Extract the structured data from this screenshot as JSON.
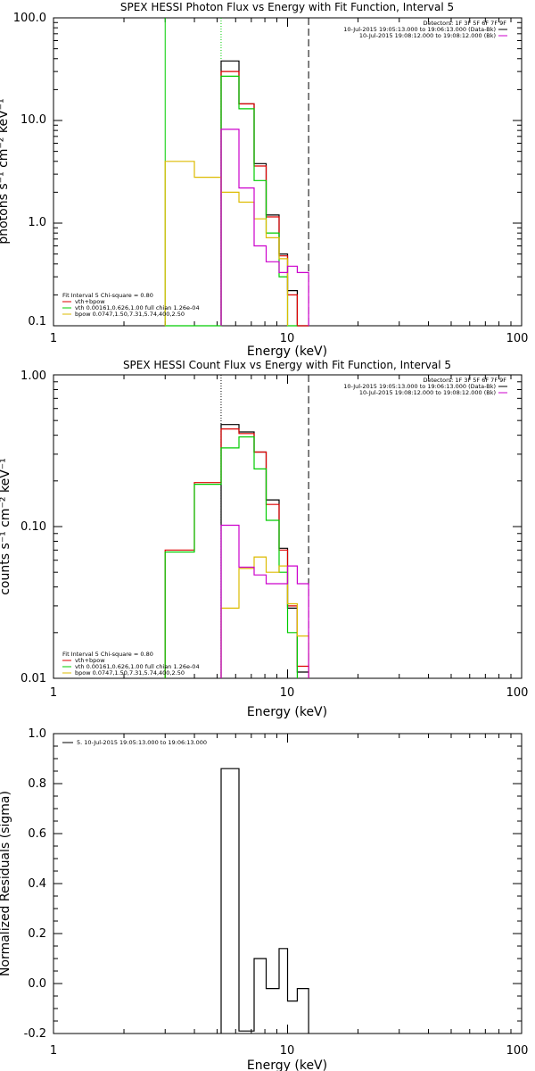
{
  "colors": {
    "total": "#000000",
    "fit": "#dd0000",
    "vth": "#00cc00",
    "bpow": "#ddbb00",
    "bk": "#cc00cc"
  },
  "chart_data": [
    {
      "type": "line",
      "title": "SPEX HESSI Photon Flux vs Energy with Fit Function, Interval 5",
      "xlabel": "Energy (keV)",
      "ylabel": "photons s⁻¹ cm⁻² keV⁻¹",
      "xscale": "log",
      "yscale": "log",
      "xlim": [
        1,
        100
      ],
      "ylim": [
        0.1,
        100
      ],
      "xticks": [
        "1",
        "10",
        "100"
      ],
      "yticks": [
        "0.1",
        "1.0",
        "10.0",
        "100.0"
      ],
      "header": {
        "detectors": "Detectors: 1F 3F 5F 6F 7F 9F",
        "entries": [
          {
            "text": "10-Jul-2015 19:05:13.000 to 19:06:13.000 (Data-Bk)",
            "color": "#000000"
          },
          {
            "text": "10-Jul-2015 19:08:12.000 to 19:08:12.000 (Bk)",
            "color": "#cc00cc"
          }
        ]
      },
      "fit_legend": {
        "heading": "Fit Interval 5   Chi-square = 0.80",
        "entries": [
          {
            "text": "vth+bpow",
            "color": "#dd0000"
          },
          {
            "text": "vth 0.00161,0.626,1.00  full chian 1.26e-04",
            "color": "#00cc00"
          },
          {
            "text": "bpow 0.0747,1.50,7.31,5.74,400,2.50",
            "color": "#ddbb00"
          }
        ]
      },
      "vlines": [
        {
          "x": 3.0,
          "color": "#00cc00",
          "style": "solid"
        },
        {
          "x": 5.2,
          "color": "#00cc00",
          "style": "dotted"
        },
        {
          "x": 12.3,
          "color": "#000000",
          "style": "dashed"
        }
      ],
      "series": [
        {
          "name": "Data-Bk",
          "color": "#000000",
          "edges": [
            5.2,
            6.2,
            7.2,
            8.1,
            9.2,
            10.0,
            11.0,
            12.3
          ],
          "values": [
            38.0,
            14.5,
            3.8,
            1.2,
            0.5,
            0.22,
            0.1
          ]
        },
        {
          "name": "vth+bpow",
          "color": "#dd0000",
          "edges": [
            5.2,
            6.2,
            7.2,
            8.1,
            9.2,
            10.0,
            11.0,
            12.3
          ],
          "values": [
            30.0,
            14.5,
            3.6,
            1.15,
            0.48,
            0.2,
            0.095
          ]
        },
        {
          "name": "vth",
          "color": "#00cc00",
          "edges": [
            3.0,
            5.2,
            6.2,
            7.2,
            8.1,
            9.2,
            10.0,
            11.0
          ],
          "values": [
            0.001,
            27.0,
            13.0,
            2.6,
            0.8,
            0.3,
            0.08
          ]
        },
        {
          "name": "bpow",
          "color": "#ddbb00",
          "edges": [
            3.0,
            4.0,
            5.2,
            6.2,
            7.2,
            8.1,
            9.2,
            10.0
          ],
          "values": [
            4.0,
            2.8,
            2.0,
            1.6,
            1.1,
            0.72,
            0.45
          ]
        },
        {
          "name": "Bk",
          "color": "#cc00cc",
          "edges": [
            5.2,
            6.2,
            7.2,
            8.1,
            9.2,
            10.0,
            11.0,
            12.3
          ],
          "values": [
            8.2,
            2.2,
            0.6,
            0.42,
            0.33,
            0.38,
            0.33
          ]
        }
      ]
    },
    {
      "type": "line",
      "title": "SPEX HESSI Count Flux vs Energy with Fit Function, Interval 5",
      "xlabel": "Energy (keV)",
      "ylabel": "counts s⁻¹ cm⁻² keV⁻¹",
      "xscale": "log",
      "yscale": "log",
      "xlim": [
        1,
        100
      ],
      "ylim": [
        0.01,
        1.0
      ],
      "xticks": [
        "1",
        "10",
        "100"
      ],
      "yticks": [
        "0.01",
        "0.10",
        "1.00"
      ],
      "header": {
        "detectors": "Detectors: 1F 3F 5F 6F 7F 9F",
        "entries": [
          {
            "text": "10-Jul-2015 19:05:13.000 to 19:06:13.000 (Data-Bk)",
            "color": "#000000"
          },
          {
            "text": "10-Jul-2015 19:08:12.000 to 19:08:12.000 (Bk)",
            "color": "#cc00cc"
          }
        ]
      },
      "fit_legend": {
        "heading": "Fit Interval 5   Chi-square = 0.80",
        "entries": [
          {
            "text": "vth+bpow",
            "color": "#dd0000"
          },
          {
            "text": "vth 0.00161,0.626,1.00  full chian 1.26e-04",
            "color": "#00cc00"
          },
          {
            "text": "bpow 0.0747,1.50,7.31,5.74,400,2.50",
            "color": "#ddbb00"
          }
        ]
      },
      "vlines": [
        {
          "x": 5.2,
          "color": "#000000",
          "style": "dotted"
        },
        {
          "x": 12.3,
          "color": "#000000",
          "style": "dashed"
        }
      ],
      "series": [
        {
          "name": "Data-Bk",
          "color": "#000000",
          "edges": [
            5.2,
            6.2,
            7.2,
            8.1,
            9.2,
            10.0,
            11.0,
            12.3
          ],
          "values": [
            0.47,
            0.42,
            0.31,
            0.15,
            0.072,
            0.029,
            0.011
          ]
        },
        {
          "name": "vth+bpow",
          "color": "#dd0000",
          "edges": [
            3.0,
            4.0,
            5.2,
            6.2,
            7.2,
            8.1,
            9.2,
            10.0,
            11.0,
            12.3
          ],
          "values": [
            0.07,
            0.195,
            0.44,
            0.41,
            0.31,
            0.14,
            0.07,
            0.03,
            0.012
          ]
        },
        {
          "name": "vth",
          "color": "#00cc00",
          "edges": [
            3.0,
            4.0,
            5.2,
            6.2,
            7.2,
            8.1,
            9.2,
            10.0,
            11.0
          ],
          "values": [
            0.068,
            0.19,
            0.33,
            0.39,
            0.24,
            0.11,
            0.05,
            0.02
          ]
        },
        {
          "name": "bpow",
          "color": "#ddbb00",
          "edges": [
            5.2,
            6.2,
            7.2,
            8.1,
            9.2,
            10.0,
            11.0,
            12.3
          ],
          "values": [
            0.029,
            0.053,
            0.063,
            0.05,
            0.055,
            0.031,
            0.019
          ]
        },
        {
          "name": "Bk",
          "color": "#cc00cc",
          "edges": [
            5.2,
            6.2,
            7.2,
            8.1,
            9.2,
            10.0,
            11.0,
            12.3
          ],
          "values": [
            0.102,
            0.054,
            0.048,
            0.042,
            0.042,
            0.055,
            0.042
          ]
        }
      ]
    },
    {
      "type": "line",
      "title": "",
      "xlabel": "Energy (keV)",
      "ylabel": "Normalized Residuals (sigma)",
      "xscale": "log",
      "yscale": "linear",
      "xlim": [
        1,
        100
      ],
      "ylim": [
        -0.2,
        1.0
      ],
      "xticks": [
        "1",
        "10",
        "100"
      ],
      "yticks": [
        "-0.2",
        "0.0",
        "0.2",
        "0.4",
        "0.6",
        "0.8",
        "1.0"
      ],
      "legend": "5. 10-Jul-2015 19:05:13.000 to 19:06:13.000",
      "series": [
        {
          "name": "",
          "color": "#000000",
          "edges": [
            5.2,
            6.2,
            7.2,
            8.1,
            9.2,
            10.0,
            11.0,
            12.3
          ],
          "values": [
            0.86,
            -0.19,
            0.1,
            -0.02,
            0.14,
            -0.07,
            -0.02
          ]
        }
      ]
    }
  ]
}
